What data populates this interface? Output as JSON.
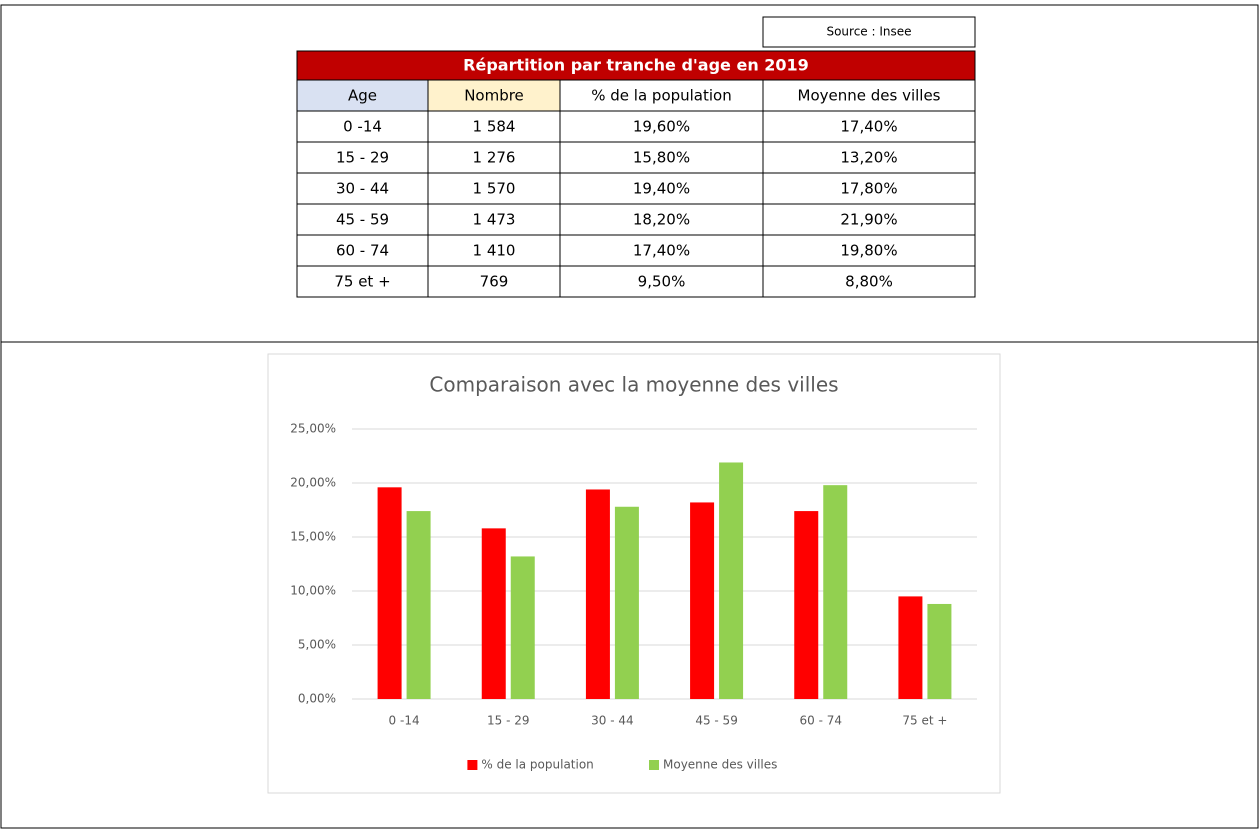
{
  "source": "Source : Insee",
  "table": {
    "title": "Répartition par tranche d'age en 2019",
    "header": [
      "Age",
      "Nombre",
      "% de la population",
      "Moyenne des villes"
    ],
    "rows": [
      [
        "0 -14",
        "1 584",
        "19,60%",
        "17,40%"
      ],
      [
        "15 - 29",
        "1 276",
        "15,80%",
        "13,20%"
      ],
      [
        "30 - 44",
        "1 570",
        "19,40%",
        "17,80%"
      ],
      [
        "45 - 59",
        "1 473",
        "18,20%",
        "21,90%"
      ],
      [
        "60 - 74",
        "1 410",
        "17,40%",
        "19,80%"
      ],
      [
        "75 et +",
        "769",
        "9,50%",
        "8,80%"
      ]
    ]
  },
  "chart_data": {
    "type": "bar",
    "title": "Comparaison avec la moyenne des villes",
    "categories": [
      "0 -14",
      "15 - 29",
      "30 - 44",
      "45 - 59",
      "60 - 74",
      "75 et +"
    ],
    "series": [
      {
        "name": "% de la population",
        "color": "#ff0000",
        "values": [
          19.6,
          15.8,
          19.4,
          18.2,
          17.4,
          9.5
        ]
      },
      {
        "name": "Moyenne des villes",
        "color": "#92d050",
        "values": [
          17.4,
          13.2,
          17.8,
          21.9,
          19.8,
          8.8
        ]
      }
    ],
    "ylim": [
      0,
      25
    ],
    "yticks": [
      {
        "value": 0,
        "label": "0,00%"
      },
      {
        "value": 5,
        "label": "5,00%"
      },
      {
        "value": 10,
        "label": "10,00%"
      },
      {
        "value": 15,
        "label": "15,00%"
      },
      {
        "value": 20,
        "label": "20,00%"
      },
      {
        "value": 25,
        "label": "25,00%"
      }
    ],
    "grid": true,
    "legend": "bottom"
  }
}
